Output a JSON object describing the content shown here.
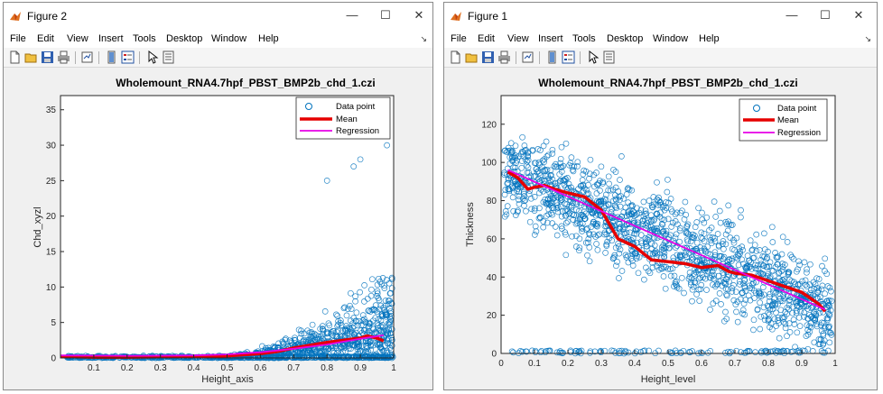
{
  "menu": [
    "File",
    "Edit",
    "View",
    "Insert",
    "Tools",
    "Desktop",
    "Window",
    "Help"
  ],
  "window_controls": {
    "minimize": "—",
    "maximize": "☐",
    "close": "✕"
  },
  "colors": {
    "data": "#0072bd",
    "mean": "#e60000",
    "regression": "#e600e6"
  },
  "windows": [
    {
      "id": "win2",
      "title": "Figure 2",
      "chart_data": {
        "type": "scatter",
        "title": "Wholemount_RNA4.7hpf_PBST_BMP2b_chd_1.czi",
        "xlabel": "Height_axis",
        "ylabel": "Chd_xyzl",
        "xlim": [
          0,
          1
        ],
        "ylim": [
          0,
          37
        ],
        "xticks": [
          "0.1",
          "0.2",
          "0.3",
          "0.4",
          "0.5",
          "0.6",
          "0.7",
          "0.8",
          "0.9",
          "1"
        ],
        "yticks": [
          "0",
          "5",
          "10",
          "15",
          "20",
          "25",
          "30",
          "35"
        ],
        "grid": false,
        "legend_position": "top-right",
        "legend": [
          "Data point",
          "Mean",
          "Regression"
        ],
        "series": [
          {
            "name": "Mean",
            "x": [
              0.0,
              0.1,
              0.2,
              0.3,
              0.4,
              0.5,
              0.6,
              0.65,
              0.7,
              0.75,
              0.8,
              0.85,
              0.9,
              0.92,
              0.95,
              0.97
            ],
            "y": [
              0.2,
              0.1,
              0.1,
              0.15,
              0.2,
              0.3,
              0.6,
              0.9,
              1.4,
              1.8,
              2.2,
              2.5,
              2.8,
              3.1,
              2.8,
              2.4
            ]
          },
          {
            "name": "Regression",
            "x": [
              0.0,
              0.2,
              0.4,
              0.5,
              0.6,
              0.7,
              0.8,
              0.9,
              0.97
            ],
            "y": [
              0.35,
              0.3,
              0.35,
              0.5,
              0.8,
              1.3,
              1.9,
              2.7,
              3.2
            ]
          }
        ]
      }
    },
    {
      "id": "win1",
      "title": "Figure 1",
      "chart_data": {
        "type": "scatter",
        "title": "Wholemount_RNA4.7hpf_PBST_BMP2b_chd_1.czi",
        "xlabel": "Height_level",
        "ylabel": "Thickness",
        "xlim": [
          0,
          1
        ],
        "ylim": [
          0,
          135
        ],
        "xticks": [
          "0",
          "0.1",
          "0.2",
          "0.3",
          "0.4",
          "0.5",
          "0.6",
          "0.7",
          "0.8",
          "0.9",
          "1"
        ],
        "yticks": [
          "0",
          "20",
          "40",
          "60",
          "80",
          "100",
          "120"
        ],
        "grid": false,
        "legend_position": "top-right",
        "legend": [
          "Data point",
          "Mean",
          "Regression"
        ],
        "series": [
          {
            "name": "Mean",
            "x": [
              0.02,
              0.05,
              0.08,
              0.1,
              0.13,
              0.16,
              0.2,
              0.25,
              0.3,
              0.35,
              0.4,
              0.45,
              0.5,
              0.55,
              0.6,
              0.65,
              0.68,
              0.7,
              0.75,
              0.8,
              0.85,
              0.9,
              0.95,
              0.97
            ],
            "y": [
              95,
              92,
              86,
              87,
              88,
              86,
              84,
              82,
              75,
              60,
              56,
              49,
              48,
              47,
              45,
              46,
              43,
              42,
              41,
              38,
              35,
              32,
              26,
              22
            ]
          },
          {
            "name": "Regression",
            "x": [
              0.02,
              0.97
            ],
            "y": [
              96,
              23
            ]
          }
        ]
      }
    }
  ]
}
